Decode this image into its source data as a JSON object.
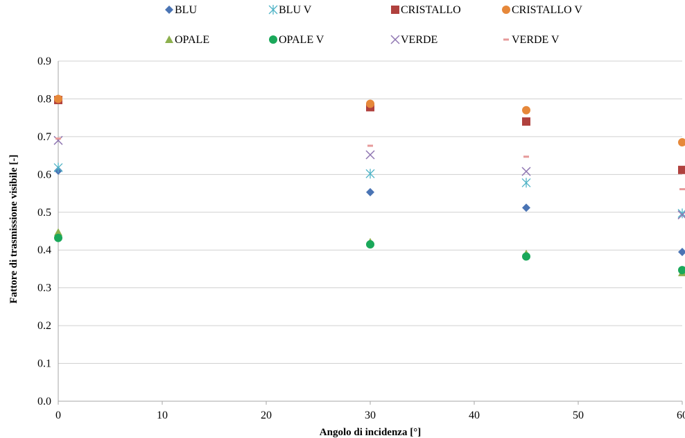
{
  "chart_data": {
    "type": "scatter",
    "title": "",
    "xlabel": "Angolo di incidenza [°]",
    "ylabel": "Fattore di trasmissione visibile [-]",
    "xlim": [
      0,
      60
    ],
    "ylim": [
      0,
      0.9
    ],
    "x_ticks": [
      "0",
      "10",
      "20",
      "30",
      "40",
      "50",
      "60"
    ],
    "y_ticks": [
      "0.0",
      "0.1",
      "0.2",
      "0.3",
      "0.4",
      "0.5",
      "0.6",
      "0.7",
      "0.8",
      "0.9"
    ],
    "grid": "horizontal",
    "legend_position": "top",
    "series": [
      {
        "name": "BLU",
        "marker": "diamond",
        "color": "#4a74b4",
        "points": [
          [
            0,
            0.61
          ],
          [
            30,
            0.553
          ],
          [
            45,
            0.512
          ],
          [
            60,
            0.395
          ]
        ]
      },
      {
        "name": "BLU V",
        "marker": "asterisk",
        "color": "#4fb3c6",
        "points": [
          [
            0,
            0.618
          ],
          [
            30,
            0.602
          ],
          [
            45,
            0.578
          ],
          [
            60,
            0.497
          ]
        ]
      },
      {
        "name": "CRISTALLO",
        "marker": "square",
        "color": "#b0413e",
        "points": [
          [
            0,
            0.797
          ],
          [
            30,
            0.778
          ],
          [
            45,
            0.74
          ],
          [
            60,
            0.612
          ]
        ]
      },
      {
        "name": "CRISTALLO V",
        "marker": "circle",
        "color": "#e6883a",
        "points": [
          [
            0,
            0.8
          ],
          [
            30,
            0.787
          ],
          [
            45,
            0.77
          ],
          [
            60,
            0.685
          ]
        ]
      },
      {
        "name": "OPALE",
        "marker": "triangle",
        "color": "#8db04e",
        "points": [
          [
            0,
            0.447
          ],
          [
            30,
            0.421
          ],
          [
            45,
            0.39
          ],
          [
            60,
            0.34
          ]
        ]
      },
      {
        "name": "OPALE V",
        "marker": "circle",
        "color": "#1aa85a",
        "points": [
          [
            0,
            0.432
          ],
          [
            30,
            0.415
          ],
          [
            45,
            0.383
          ],
          [
            60,
            0.347
          ]
        ]
      },
      {
        "name": "VERDE",
        "marker": "x",
        "color": "#8f76b2",
        "points": [
          [
            0,
            0.69
          ],
          [
            30,
            0.652
          ],
          [
            45,
            0.608
          ],
          [
            60,
            0.493
          ]
        ]
      },
      {
        "name": "VERDE V",
        "marker": "dash",
        "color": "#e69a9a",
        "points": [
          [
            0,
            0.695
          ],
          [
            30,
            0.676
          ],
          [
            45,
            0.647
          ],
          [
            60,
            0.561
          ]
        ]
      }
    ]
  }
}
